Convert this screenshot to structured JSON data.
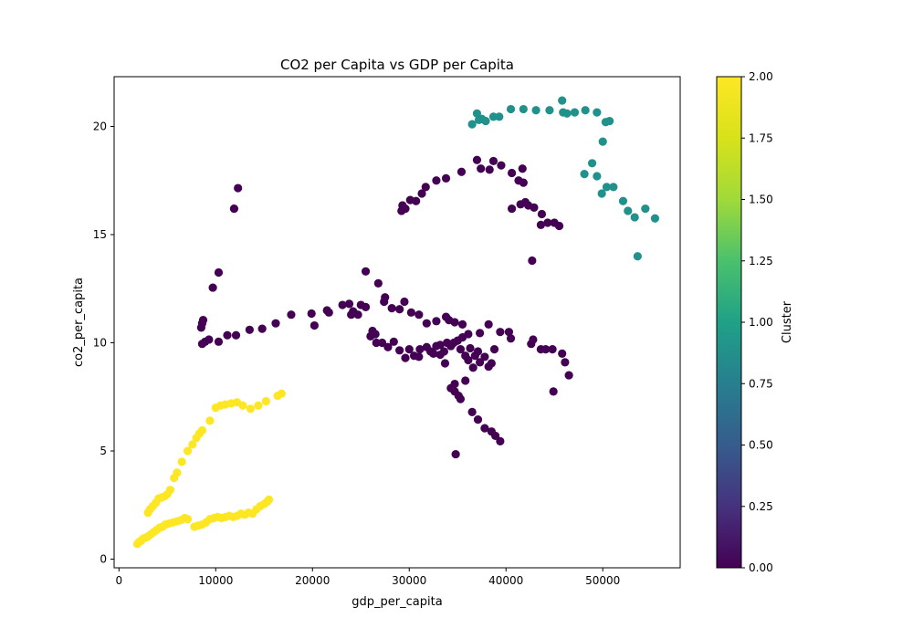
{
  "chart_data": {
    "type": "scatter",
    "title": "CO2 per Capita vs GDP per Capita",
    "xlabel": "gdp_per_capita",
    "ylabel": "co2_per_capita",
    "xlim": [
      -500,
      58000
    ],
    "ylim": [
      -0.4,
      22.3
    ],
    "xticks": [
      0,
      10000,
      20000,
      30000,
      40000,
      50000
    ],
    "yticks": [
      0,
      5,
      10,
      15,
      20
    ],
    "grid": false,
    "legend": "none",
    "colorbar": {
      "label": "Cluster",
      "range": [
        0,
        2
      ],
      "ticks": [
        "0.00",
        "0.25",
        "0.50",
        "0.75",
        "1.00",
        "1.25",
        "1.50",
        "1.75",
        "2.00"
      ],
      "colormap": "viridis"
    },
    "cluster_colors": [
      "#440154",
      "#21918c",
      "#fde725"
    ],
    "series": [
      {
        "cluster": 2,
        "points": [
          [
            1900,
            0.7
          ],
          [
            2100,
            0.8
          ],
          [
            2300,
            0.85
          ],
          [
            2500,
            0.95
          ],
          [
            2800,
            1.0
          ],
          [
            3000,
            1.05
          ],
          [
            3300,
            1.15
          ],
          [
            3600,
            1.25
          ],
          [
            3900,
            1.35
          ],
          [
            4200,
            1.45
          ],
          [
            4500,
            1.5
          ],
          [
            4800,
            1.6
          ],
          [
            5200,
            1.65
          ],
          [
            5600,
            1.7
          ],
          [
            6000,
            1.75
          ],
          [
            6400,
            1.8
          ],
          [
            6800,
            1.9
          ],
          [
            7100,
            1.85
          ],
          [
            7800,
            1.5
          ],
          [
            8200,
            1.55
          ],
          [
            8600,
            1.6
          ],
          [
            9000,
            1.7
          ],
          [
            9400,
            1.85
          ],
          [
            9800,
            1.9
          ],
          [
            10200,
            1.95
          ],
          [
            10600,
            1.9
          ],
          [
            11000,
            1.95
          ],
          [
            11400,
            2.0
          ],
          [
            11800,
            1.95
          ],
          [
            12200,
            2.0
          ],
          [
            12600,
            2.1
          ],
          [
            13000,
            2.05
          ],
          [
            13400,
            2.15
          ],
          [
            13800,
            2.1
          ],
          [
            14200,
            2.3
          ],
          [
            14600,
            2.45
          ],
          [
            15000,
            2.55
          ],
          [
            15300,
            2.65
          ],
          [
            15500,
            2.75
          ],
          [
            3000,
            2.15
          ],
          [
            3200,
            2.3
          ],
          [
            3500,
            2.45
          ],
          [
            3800,
            2.6
          ],
          [
            4100,
            2.8
          ],
          [
            4400,
            2.85
          ],
          [
            4700,
            2.9
          ],
          [
            5000,
            3.0
          ],
          [
            5300,
            3.2
          ],
          [
            5700,
            3.75
          ],
          [
            6000,
            4.0
          ],
          [
            6500,
            4.5
          ],
          [
            7100,
            5.0
          ],
          [
            7600,
            5.3
          ],
          [
            8000,
            5.6
          ],
          [
            8300,
            5.8
          ],
          [
            8600,
            5.95
          ],
          [
            9400,
            6.4
          ],
          [
            10000,
            7.0
          ],
          [
            10500,
            7.1
          ],
          [
            11000,
            7.15
          ],
          [
            11600,
            7.2
          ],
          [
            12200,
            7.25
          ],
          [
            12800,
            7.1
          ],
          [
            13600,
            6.95
          ],
          [
            14400,
            7.1
          ],
          [
            15200,
            7.3
          ],
          [
            16400,
            7.55
          ],
          [
            16800,
            7.65
          ]
        ]
      },
      {
        "cluster": 1,
        "points": [
          [
            36500,
            20.1
          ],
          [
            37000,
            20.6
          ],
          [
            37200,
            20.3
          ],
          [
            37500,
            20.35
          ],
          [
            37900,
            20.25
          ],
          [
            38700,
            20.45
          ],
          [
            39300,
            20.45
          ],
          [
            40500,
            20.8
          ],
          [
            41800,
            20.8
          ],
          [
            43100,
            20.75
          ],
          [
            44500,
            20.75
          ],
          [
            45800,
            21.2
          ],
          [
            45900,
            20.65
          ],
          [
            46300,
            20.6
          ],
          [
            47100,
            20.65
          ],
          [
            48200,
            20.75
          ],
          [
            49400,
            20.65
          ],
          [
            50000,
            19.3
          ],
          [
            50300,
            20.2
          ],
          [
            50700,
            20.25
          ],
          [
            48100,
            17.8
          ],
          [
            48900,
            18.3
          ],
          [
            49400,
            17.7
          ],
          [
            49900,
            16.9
          ],
          [
            50400,
            17.2
          ],
          [
            51100,
            17.2
          ],
          [
            52100,
            16.55
          ],
          [
            52600,
            16.1
          ],
          [
            53300,
            15.8
          ],
          [
            53600,
            14.0
          ],
          [
            54400,
            16.2
          ],
          [
            55400,
            15.75
          ]
        ]
      },
      {
        "cluster": 0,
        "points": [
          [
            8500,
            10.7
          ],
          [
            8600,
            10.9
          ],
          [
            8700,
            11.05
          ],
          [
            8600,
            9.95
          ],
          [
            8900,
            10.05
          ],
          [
            9300,
            10.15
          ],
          [
            10300,
            10.05
          ],
          [
            11200,
            10.35
          ],
          [
            12100,
            10.35
          ],
          [
            13500,
            10.6
          ],
          [
            14800,
            10.65
          ],
          [
            16200,
            10.9
          ],
          [
            17800,
            11.3
          ],
          [
            19900,
            11.35
          ],
          [
            20200,
            10.8
          ],
          [
            21500,
            11.5
          ],
          [
            21700,
            11.4
          ],
          [
            23100,
            11.75
          ],
          [
            23800,
            11.8
          ],
          [
            24000,
            11.3
          ],
          [
            24200,
            11.45
          ],
          [
            24700,
            11.3
          ],
          [
            25000,
            11.75
          ],
          [
            25500,
            11.65
          ],
          [
            9700,
            12.55
          ],
          [
            10300,
            13.25
          ],
          [
            11900,
            16.2
          ],
          [
            12300,
            17.15
          ],
          [
            25500,
            13.3
          ],
          [
            26800,
            12.75
          ],
          [
            29200,
            16.1
          ],
          [
            29300,
            16.35
          ],
          [
            29600,
            16.2
          ],
          [
            30100,
            16.6
          ],
          [
            30700,
            16.55
          ],
          [
            31300,
            16.9
          ],
          [
            31700,
            17.2
          ],
          [
            32800,
            17.5
          ],
          [
            33800,
            17.6
          ],
          [
            35400,
            17.9
          ],
          [
            37000,
            18.45
          ],
          [
            37400,
            18.05
          ],
          [
            38300,
            18.0
          ],
          [
            38700,
            18.4
          ],
          [
            39500,
            18.2
          ],
          [
            40600,
            17.85
          ],
          [
            41300,
            17.5
          ],
          [
            41700,
            18.05
          ],
          [
            41800,
            17.4
          ],
          [
            40600,
            16.2
          ],
          [
            41500,
            16.4
          ],
          [
            42000,
            16.5
          ],
          [
            42300,
            16.35
          ],
          [
            42900,
            16.25
          ],
          [
            43700,
            15.95
          ],
          [
            43600,
            15.45
          ],
          [
            44300,
            15.55
          ],
          [
            45000,
            15.55
          ],
          [
            45500,
            15.4
          ],
          [
            42700,
            13.8
          ],
          [
            26000,
            10.3
          ],
          [
            26200,
            10.55
          ],
          [
            26500,
            10.4
          ],
          [
            26600,
            10.0
          ],
          [
            27200,
            10.0
          ],
          [
            27800,
            9.8
          ],
          [
            28400,
            10.05
          ],
          [
            29000,
            9.65
          ],
          [
            29600,
            9.3
          ],
          [
            30000,
            9.7
          ],
          [
            30500,
            9.4
          ],
          [
            31000,
            9.35
          ],
          [
            31100,
            9.7
          ],
          [
            31800,
            9.8
          ],
          [
            32200,
            9.6
          ],
          [
            32500,
            9.5
          ],
          [
            32800,
            9.85
          ],
          [
            33200,
            9.9
          ],
          [
            33600,
            9.6
          ],
          [
            33900,
            10.0
          ],
          [
            34300,
            9.85
          ],
          [
            34600,
            10.0
          ],
          [
            35000,
            10.1
          ],
          [
            35300,
            9.7
          ],
          [
            35500,
            10.25
          ],
          [
            35800,
            9.4
          ],
          [
            36100,
            9.2
          ],
          [
            36300,
            9.75
          ],
          [
            36600,
            8.85
          ],
          [
            36800,
            9.4
          ],
          [
            37100,
            9.6
          ],
          [
            37300,
            9.1
          ],
          [
            37800,
            9.35
          ],
          [
            38200,
            8.9
          ],
          [
            38500,
            9.05
          ],
          [
            38800,
            9.7
          ],
          [
            27400,
            11.9
          ],
          [
            27500,
            12.1
          ],
          [
            28200,
            11.6
          ],
          [
            29000,
            11.55
          ],
          [
            29500,
            11.9
          ],
          [
            30200,
            11.4
          ],
          [
            31000,
            11.3
          ],
          [
            31800,
            10.9
          ],
          [
            32800,
            11.0
          ],
          [
            33800,
            11.2
          ],
          [
            34100,
            11.05
          ],
          [
            34700,
            10.95
          ],
          [
            35500,
            10.85
          ],
          [
            36100,
            10.4
          ],
          [
            37300,
            10.45
          ],
          [
            38200,
            10.85
          ],
          [
            39400,
            10.5
          ],
          [
            40300,
            10.5
          ],
          [
            40500,
            10.2
          ],
          [
            42600,
            9.95
          ],
          [
            42800,
            10.15
          ],
          [
            43600,
            9.7
          ],
          [
            44100,
            9.7
          ],
          [
            44800,
            9.7
          ],
          [
            45800,
            9.5
          ],
          [
            46100,
            9.1
          ],
          [
            46500,
            8.5
          ],
          [
            44900,
            7.75
          ],
          [
            33200,
            9.45
          ],
          [
            33700,
            9.05
          ],
          [
            34300,
            7.9
          ],
          [
            34700,
            7.75
          ],
          [
            34700,
            8.1
          ],
          [
            35100,
            7.55
          ],
          [
            35300,
            7.4
          ],
          [
            35800,
            8.25
          ],
          [
            36500,
            6.8
          ],
          [
            37100,
            6.45
          ],
          [
            37800,
            6.05
          ],
          [
            38500,
            5.9
          ],
          [
            38900,
            5.7
          ],
          [
            39400,
            5.45
          ],
          [
            34800,
            4.85
          ]
        ]
      }
    ]
  }
}
